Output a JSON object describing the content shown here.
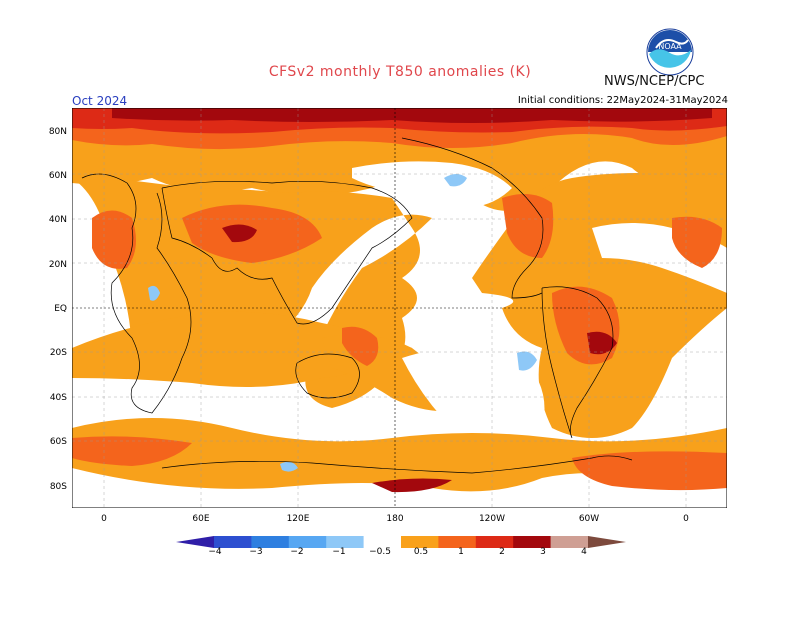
{
  "header": {
    "title": "CFSv2 monthly T850 anomalies (K)",
    "month": "Oct 2024",
    "initial_conditions": "Initial conditions: 22May2024-31May2024",
    "credit": "NWS/NCEP/CPC",
    "logo_text": "NOAA"
  },
  "axes": {
    "lat_labels": [
      "80N",
      "60N",
      "40N",
      "20N",
      "EQ",
      "20S",
      "40S",
      "60S",
      "80S"
    ],
    "lon_labels": [
      "0",
      "60E",
      "120E",
      "180",
      "120W",
      "60W",
      "0"
    ]
  },
  "colorbar": {
    "labels": [
      "−4",
      "−3",
      "−2",
      "−1",
      "−0.5",
      "0.5",
      "1",
      "2",
      "3",
      "4"
    ],
    "colors": [
      "#2f1ea8",
      "#2d4fd0",
      "#2e7fe0",
      "#57a7f2",
      "#8ec8f7",
      "#ffffff",
      "#f9a11b",
      "#f4641c",
      "#dd2a16",
      "#a3080d",
      "#cf9f94",
      "#7d4a3d"
    ]
  },
  "palette": {
    "warm1": "#f8a11b",
    "warm2": "#f4641c",
    "warm3": "#dd2a16",
    "warm4": "#a3080d",
    "cool1": "#8ec8f7",
    "background": "#ffffff"
  }
}
